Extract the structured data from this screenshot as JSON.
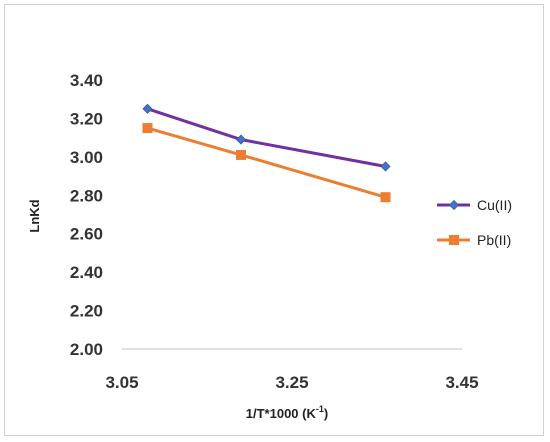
{
  "chart_data": {
    "type": "line",
    "title": "",
    "xlabel": "1/T*1000 (K",
    "xlabel_superscript": "-1",
    "xlabel_close": ")",
    "ylabel": "LnKd",
    "xlim": [
      3.05,
      3.45
    ],
    "ylim": [
      2.0,
      3.4
    ],
    "x_ticks": [
      "3.05",
      "3.25",
      "3.45"
    ],
    "y_ticks": [
      "3.40",
      "3.20",
      "3.00",
      "2.80",
      "2.60",
      "2.40",
      "2.20",
      "2.00"
    ],
    "grid": false,
    "legend_position": "right",
    "series": [
      {
        "name": "Cu(II)",
        "color": "#7030A0",
        "marker": "diamond",
        "marker_color": "#4472C4",
        "x": [
          3.08,
          3.19,
          3.36
        ],
        "y": [
          3.25,
          3.09,
          2.95
        ]
      },
      {
        "name": "Pb(II)",
        "color": "#ED7D31",
        "marker": "square",
        "marker_color": "#ED7D31",
        "x": [
          3.08,
          3.19,
          3.36
        ],
        "y": [
          3.15,
          3.01,
          2.79
        ]
      }
    ]
  }
}
